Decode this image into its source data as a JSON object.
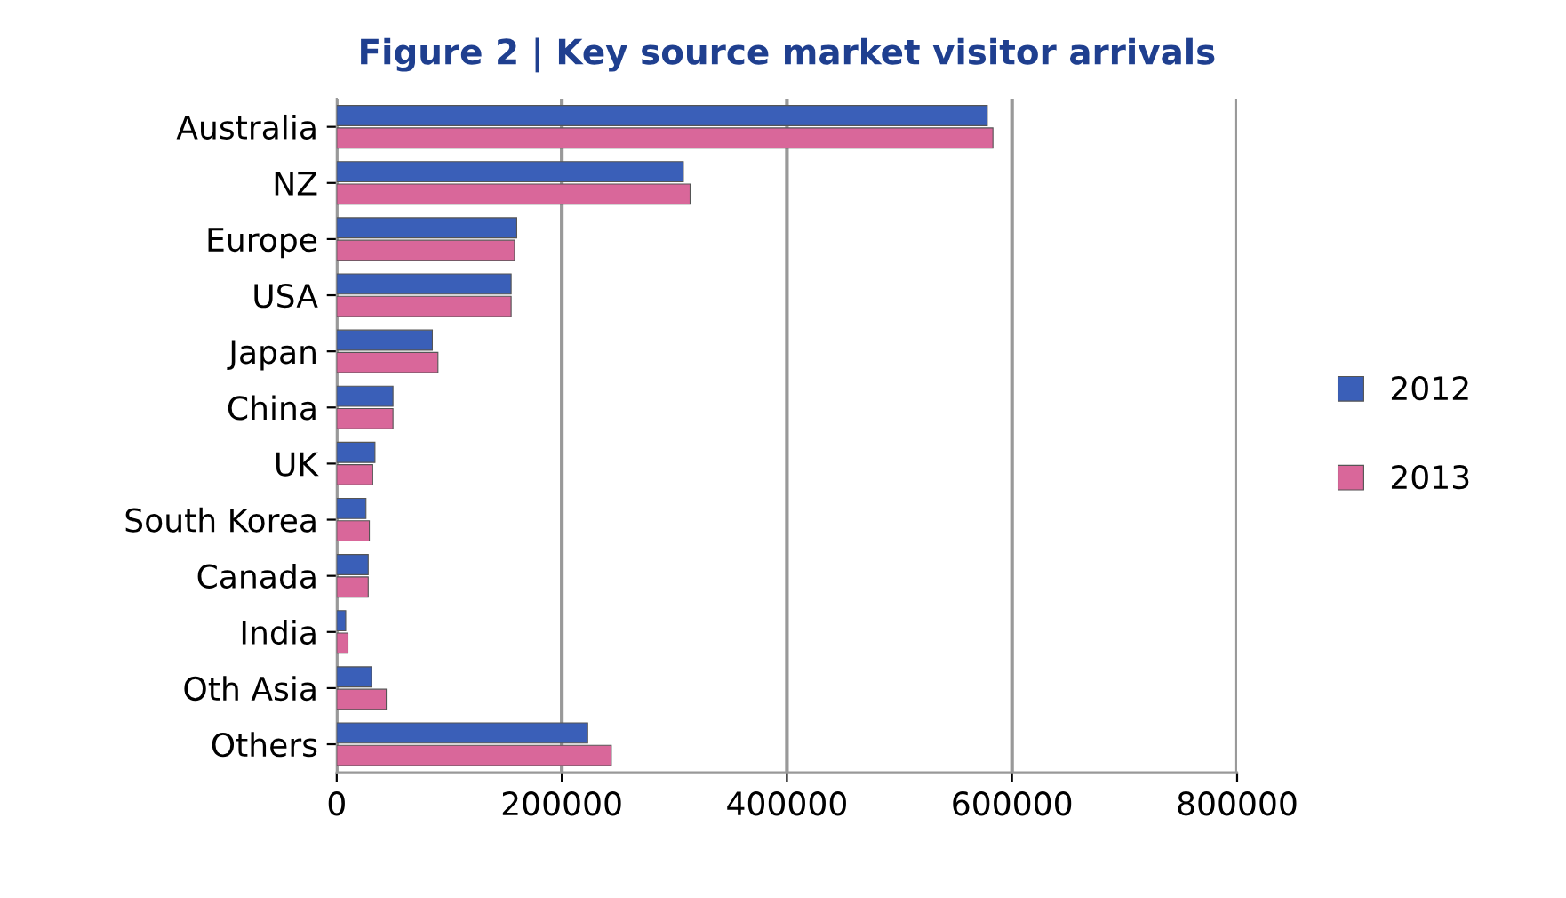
{
  "chart_data": {
    "type": "bar",
    "orientation": "horizontal",
    "title": "Figure 2 | Key source market visitor arrivals",
    "categories": [
      "Australia",
      "NZ",
      "Europe",
      "USA",
      "Japan",
      "China",
      "UK",
      "South Korea",
      "Canada",
      "India",
      "Oth Asia",
      "Others"
    ],
    "series": [
      {
        "name": "2012",
        "color": "#3a5fb8",
        "values": [
          578000,
          308000,
          160000,
          155000,
          85000,
          50000,
          34000,
          26000,
          28000,
          8000,
          31000,
          223000
        ]
      },
      {
        "name": "2013",
        "color": "#d9679a",
        "values": [
          583000,
          314000,
          158000,
          155000,
          90000,
          50000,
          32000,
          29000,
          28000,
          10000,
          44000,
          244000
        ]
      }
    ],
    "xlim": [
      0,
      800000
    ],
    "xticks": [
      0,
      200000,
      400000,
      600000,
      800000
    ],
    "grid": "x",
    "legend": "right"
  }
}
